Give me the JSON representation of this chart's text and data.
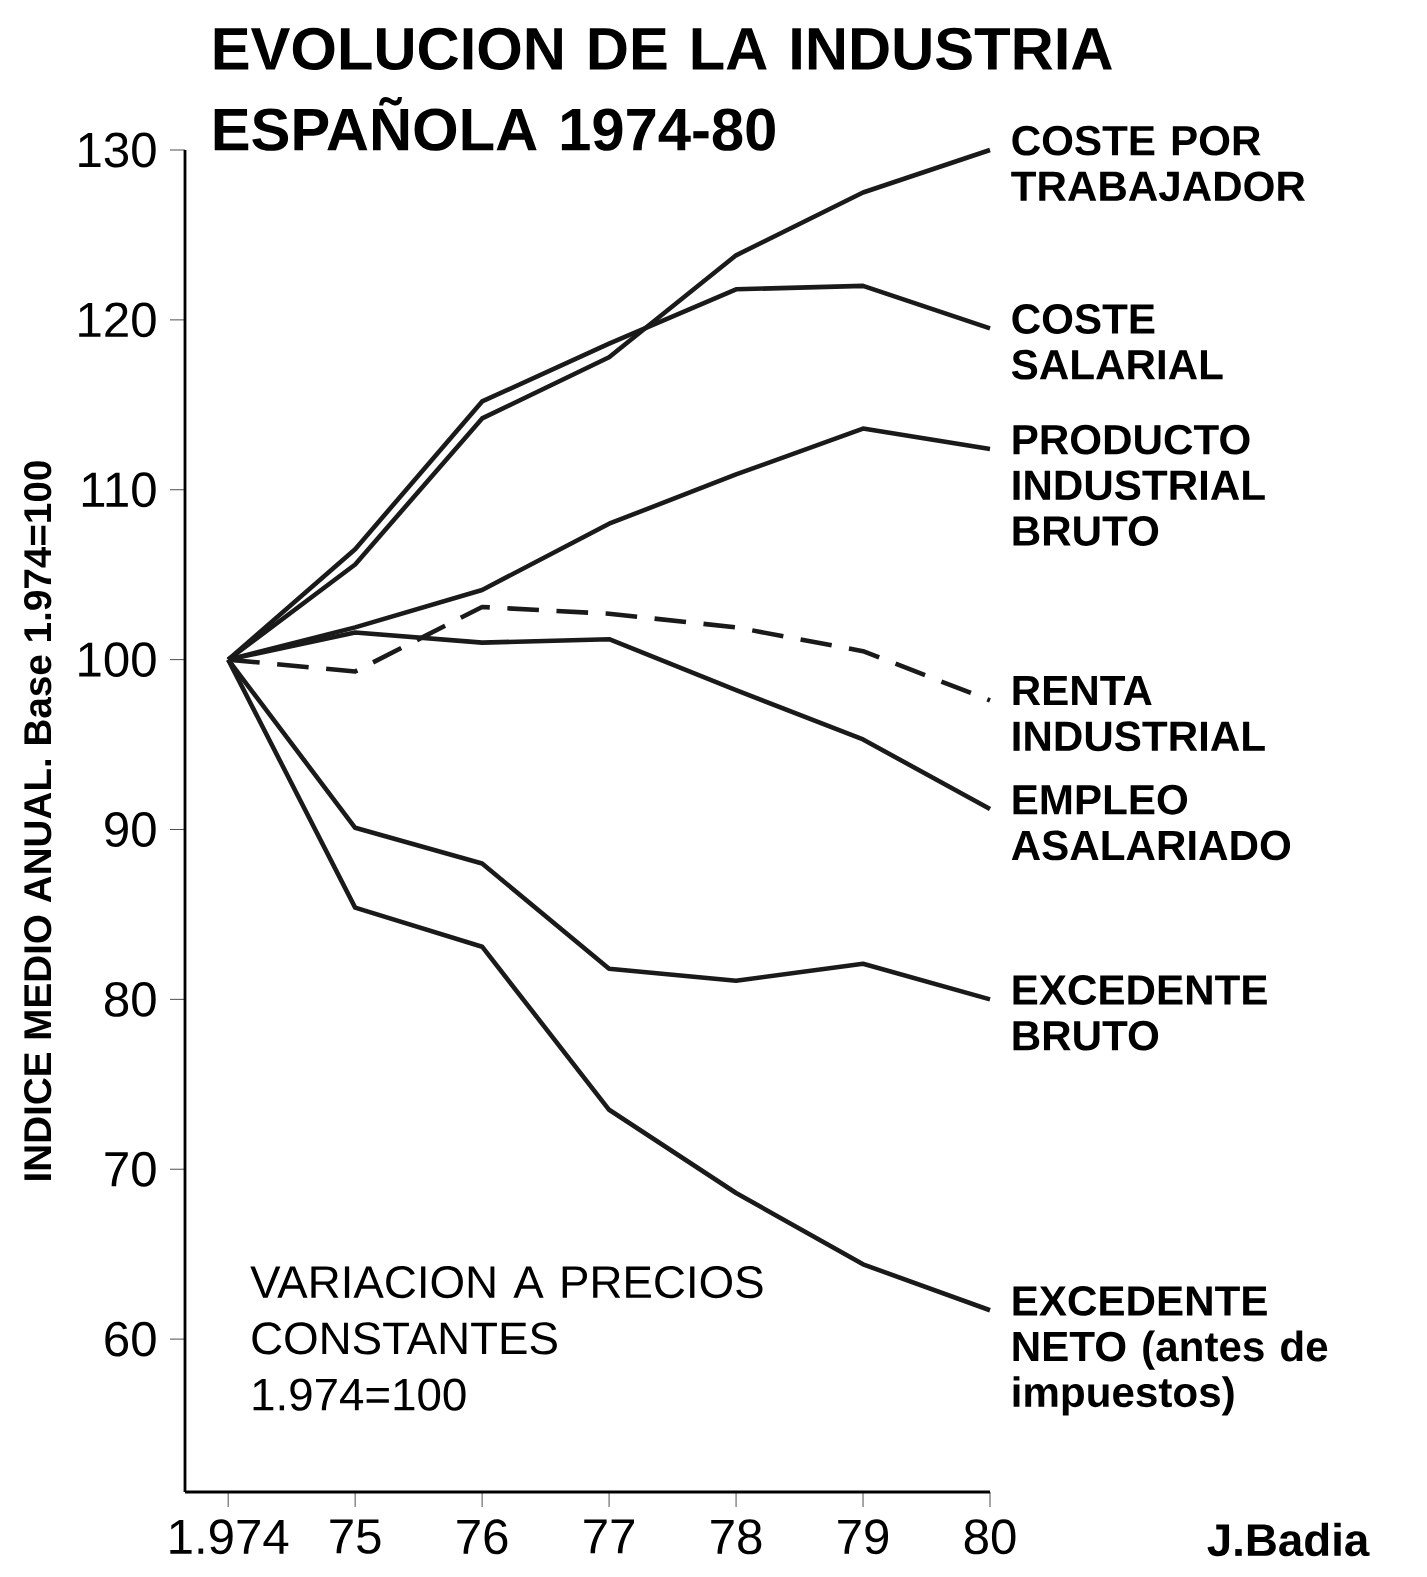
{
  "chart_data": {
    "type": "line",
    "title": "EVOLUCION DE LA INDUSTRIA ESPAÑOLA 1974-80",
    "ylabel": "INDICE MEDIO ANUAL. Base 1.974=100",
    "categories": [
      "1.974",
      "75",
      "76",
      "77",
      "78",
      "79",
      "80"
    ],
    "ylim": [
      51,
      130
    ],
    "yticks": [
      60,
      70,
      80,
      90,
      100,
      110,
      120,
      130
    ],
    "grid": false,
    "legend": false,
    "marker": "none",
    "series": [
      {
        "name": "COSTE POR TRABAJADOR",
        "color": "#1a1a1a",
        "values": [
          100,
          105.6,
          114.2,
          117.8,
          123.8,
          127.5,
          130
        ]
      },
      {
        "name": "COSTE SALARIAL",
        "color": "#1a1a1a",
        "values": [
          100,
          106.5,
          115.2,
          118.6,
          121.8,
          122,
          119.5
        ]
      },
      {
        "name": "PRODUCTO INDUSTRIAL BRUTO",
        "color": "#1a1a1a",
        "values": [
          100,
          101.9,
          104.1,
          108,
          110.9,
          113.6,
          112.4
        ]
      },
      {
        "name": "RENTA INDUSTRIAL",
        "color": "#1a1a1a",
        "line_style": "dashed",
        "values": [
          100,
          99.3,
          103.1,
          102.7,
          101.9,
          100.5,
          97.6
        ]
      },
      {
        "name": "EMPLEO ASALARIADO",
        "color": "#1a1a1a",
        "values": [
          100,
          101.6,
          101,
          101.2,
          98.2,
          95.3,
          91.2
        ]
      },
      {
        "name": "EXCEDENTE BRUTO",
        "color": "#1a1a1a",
        "values": [
          100,
          90.1,
          88,
          81.8,
          81.1,
          82.1,
          80
        ]
      },
      {
        "name": "EXCEDENTE NETO (antes de impuestos)",
        "color": "#1a1a1a",
        "values": [
          100,
          85.4,
          83.1,
          73.5,
          68.6,
          64.4,
          61.7
        ]
      }
    ],
    "annotations": [
      "VARIACION A PRECIOS CONSTANTES 1.974=100",
      "J.Badia"
    ]
  }
}
